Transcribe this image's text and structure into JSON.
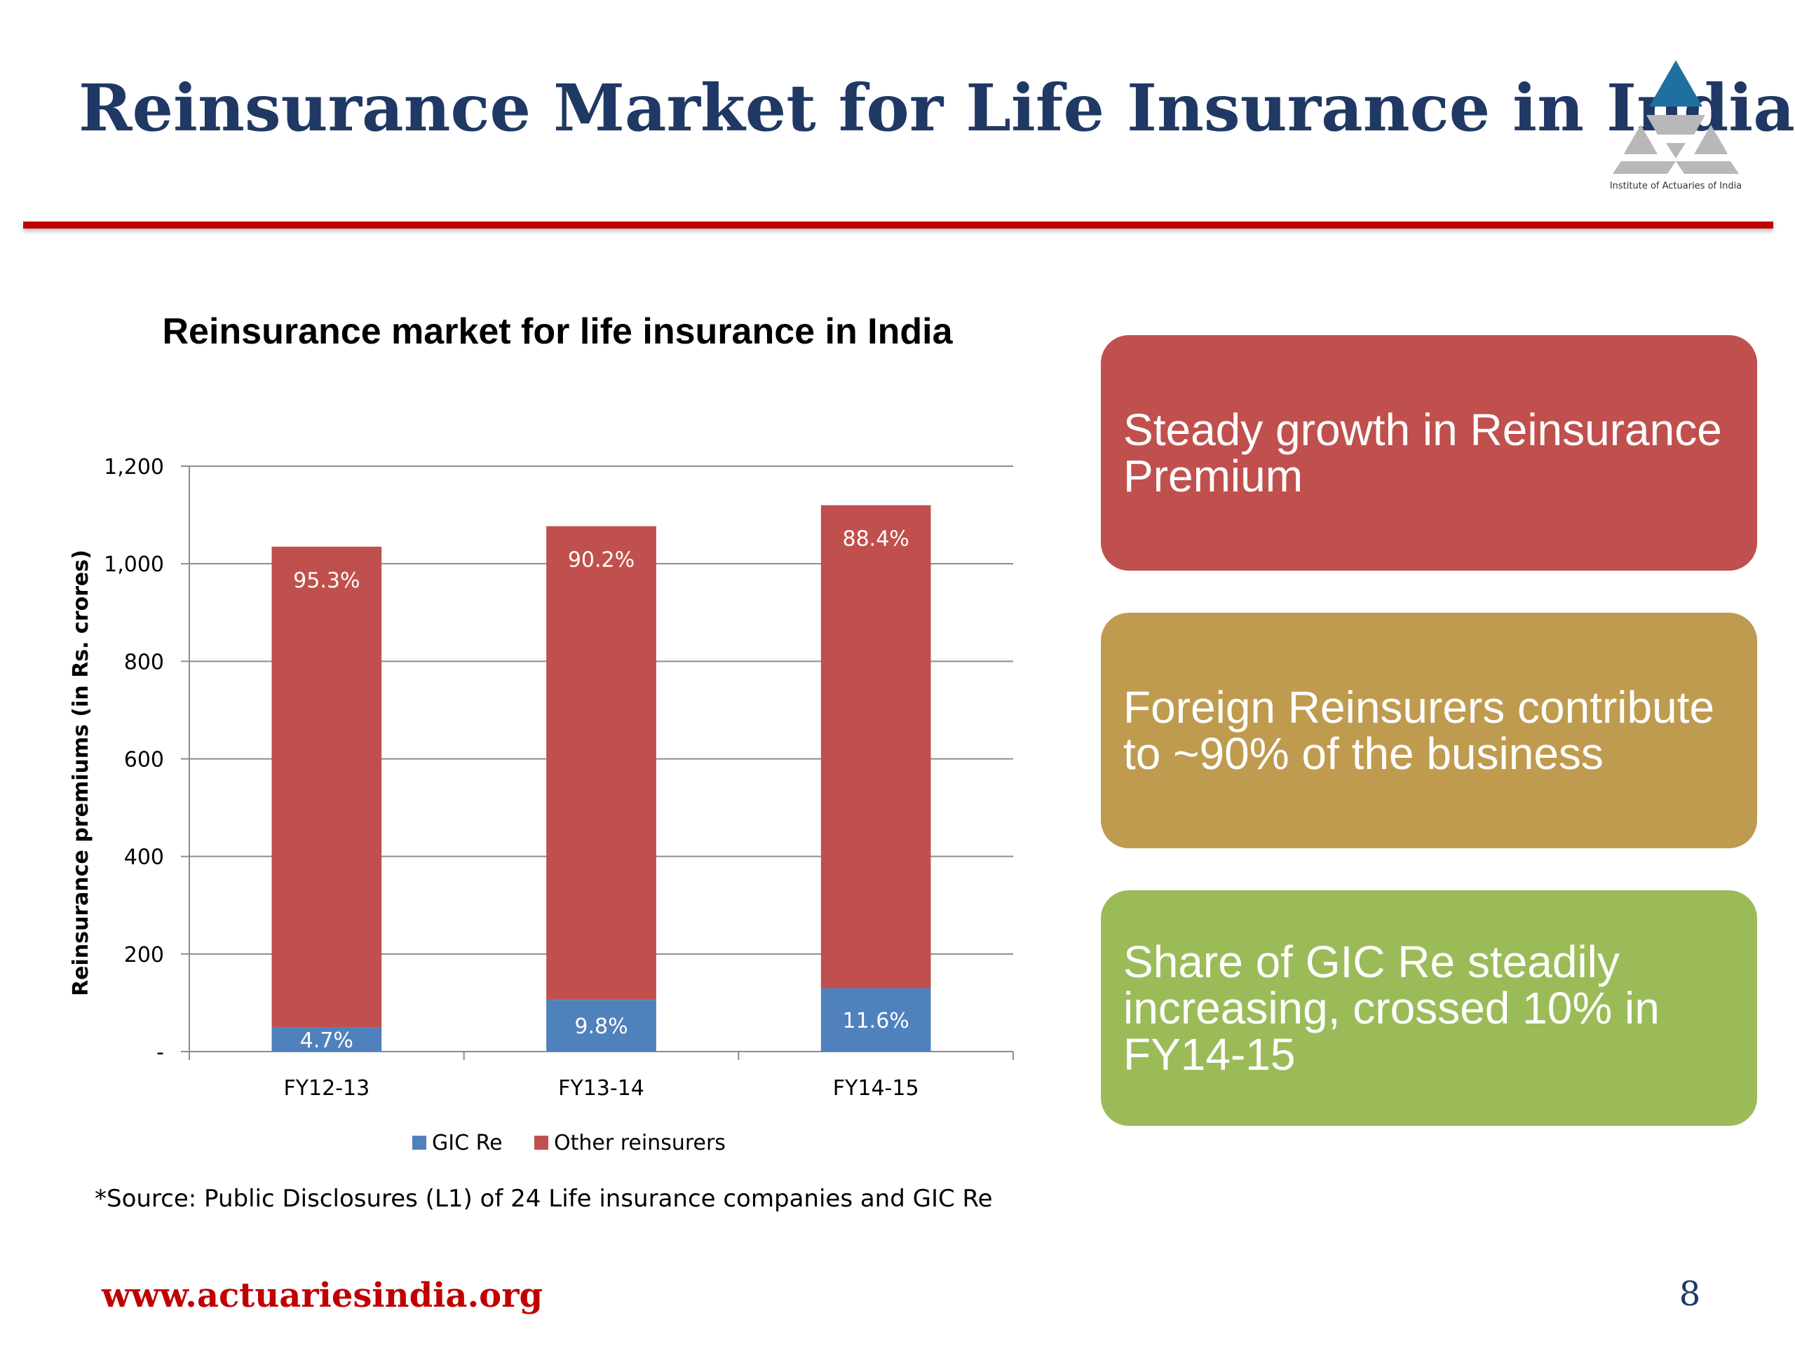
{
  "slide": {
    "title": "Reinsurance Market for Life Insurance in India",
    "logo_caption": "Institute of Actuaries of India",
    "footer_url": "www.actuariesindia.org",
    "page_number": "8",
    "source_note": "*Source: Public Disclosures (L1) of 24 Life insurance companies and GIC Re"
  },
  "callouts": [
    {
      "text": "Steady growth in Reinsurance Premium",
      "color": "#c0504d"
    },
    {
      "text": "Foreign Reinsurers contribute to ~90% of the business",
      "color": "#bf9b50"
    },
    {
      "text": "Share of GIC Re steadily increasing, crossed 10% in FY14-15",
      "color": "#9bbb59"
    }
  ],
  "colors": {
    "title": "#1f3864",
    "rule": "#c00000",
    "gic": "#4f81bd",
    "other": "#c0504d"
  },
  "chart_data": {
    "type": "bar",
    "stacked": true,
    "title": "Reinsurance market for life insurance in India",
    "ylabel": "Reinsurance premiums (in Rs. crores)",
    "xlabel": "",
    "ylim": [
      0,
      1200
    ],
    "yticks": [
      0,
      200,
      400,
      600,
      800,
      1000,
      1200
    ],
    "ytick_labels": [
      "-",
      "200",
      "400",
      "600",
      "800",
      "1,000",
      "1,200"
    ],
    "grid": true,
    "legend_position": "bottom",
    "categories": [
      "FY12-13",
      "FY13-14",
      "FY14-15"
    ],
    "series": [
      {
        "name": "GIC Re",
        "color": "#4f81bd",
        "values": [
          49,
          106,
          130
        ],
        "labels": [
          "4.7%",
          "9.8%",
          "11.6%"
        ]
      },
      {
        "name": "Other reinsurers",
        "color": "#c0504d",
        "values": [
          986,
          971,
          990
        ],
        "labels": [
          "95.3%",
          "90.2%",
          "88.4%"
        ]
      }
    ]
  }
}
